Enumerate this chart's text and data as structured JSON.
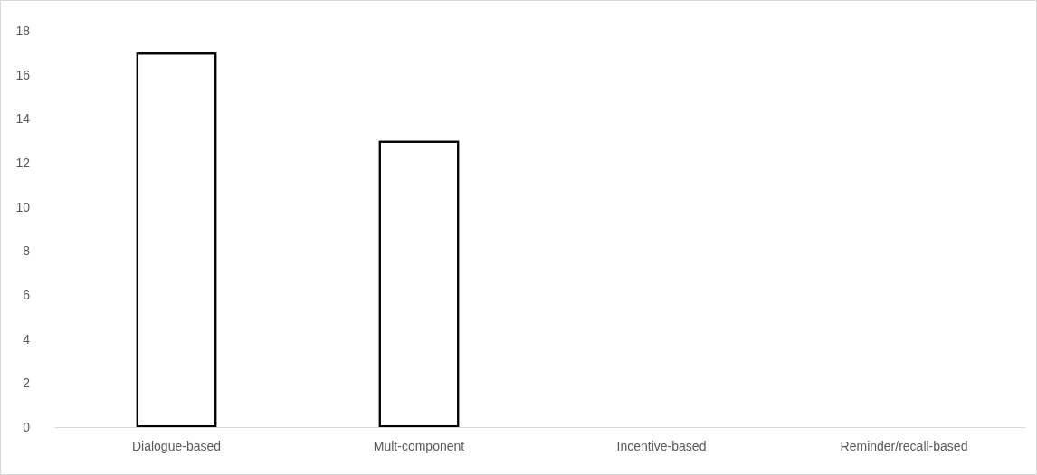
{
  "chart_data": {
    "type": "bar",
    "categories": [
      "Dialogue-based",
      "Mult-component",
      "Incentive-based",
      "Reminder/recall-based"
    ],
    "values": [
      17,
      13,
      0,
      0
    ],
    "color": "#ffffff",
    "ylim": [
      0,
      18
    ],
    "yticks": [
      0,
      2,
      4,
      6,
      8,
      10,
      12,
      14,
      16,
      18
    ],
    "grid": false
  }
}
